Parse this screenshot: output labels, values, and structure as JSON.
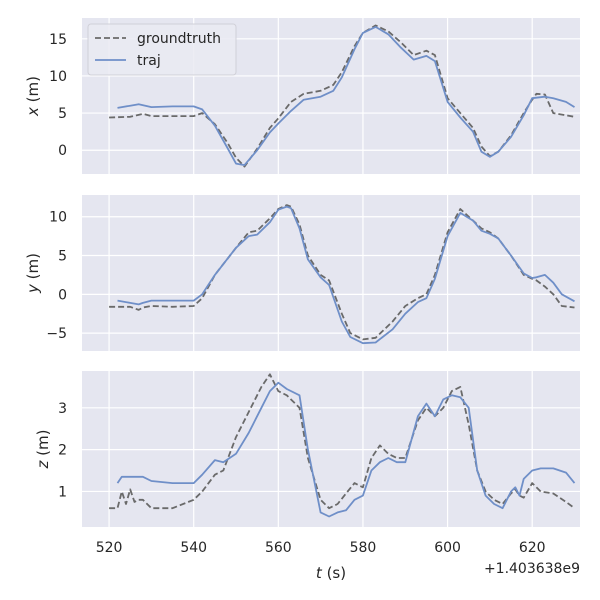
{
  "colors": {
    "background": "#ffffff",
    "panel": "#e5e6f0",
    "grid": "#ffffff",
    "groundtruth": "#6a6a6a",
    "traj": "#6f8fc8",
    "text": "#262626"
  },
  "legend": {
    "placement": "top-left",
    "items": [
      "groundtruth",
      "traj"
    ]
  },
  "chart_data": [
    {
      "type": "line",
      "ylabel": "x (m)",
      "ylabel_var": "x",
      "ylabel_unit": "(m)",
      "xlim": [
        513.6,
        631.3
      ],
      "ylim": [
        -3.2,
        17.8
      ],
      "yticks": [
        0,
        5,
        10,
        15
      ],
      "ytick_labels": [
        "0",
        "5",
        "10",
        "15"
      ],
      "grid": true,
      "series": [
        {
          "name": "groundtruth",
          "style": "dashed",
          "x": [
            520,
            525,
            528,
            530,
            535,
            540,
            542,
            545,
            548,
            550,
            552,
            555,
            558,
            560,
            563,
            566,
            570,
            573,
            575,
            578,
            580,
            583,
            586,
            589,
            592,
            595,
            597,
            600,
            603,
            606,
            608,
            610,
            612,
            615,
            618,
            620,
            621,
            623,
            625,
            628,
            630
          ],
          "y": [
            4.4,
            4.5,
            4.9,
            4.6,
            4.6,
            4.6,
            5.0,
            3.5,
            1.0,
            -1.0,
            -2.2,
            0.2,
            3.0,
            4.3,
            6.5,
            7.6,
            8.0,
            8.8,
            10.5,
            14.0,
            15.8,
            16.8,
            16.0,
            14.5,
            12.8,
            13.4,
            12.8,
            7.0,
            5.0,
            3.0,
            0.5,
            -0.8,
            -0.2,
            2.0,
            5.0,
            6.8,
            7.6,
            7.5,
            5.0,
            4.7,
            4.5
          ]
        },
        {
          "name": "traj",
          "style": "solid",
          "x": [
            522,
            525,
            527,
            530,
            535,
            540,
            542,
            545,
            548,
            550,
            552,
            555,
            558,
            560,
            563,
            566,
            570,
            573,
            575,
            578,
            580,
            583,
            586,
            589,
            592,
            595,
            597,
            600,
            603,
            606,
            608,
            610,
            612,
            615,
            618,
            620,
            623,
            625,
            628,
            630
          ],
          "y": [
            5.7,
            6.0,
            6.2,
            5.8,
            5.9,
            5.9,
            5.5,
            3.3,
            0.3,
            -1.8,
            -2.0,
            0.0,
            2.4,
            3.6,
            5.3,
            6.8,
            7.2,
            8.0,
            9.8,
            13.6,
            15.8,
            16.6,
            15.6,
            13.8,
            12.2,
            12.7,
            12.0,
            6.5,
            4.4,
            2.5,
            -0.2,
            -0.9,
            -0.2,
            1.8,
            4.7,
            7.0,
            7.2,
            7.0,
            6.5,
            5.8
          ]
        }
      ]
    },
    {
      "type": "line",
      "ylabel": "y (m)",
      "ylabel_var": "y",
      "ylabel_unit": "(m)",
      "xlim": [
        513.6,
        631.3
      ],
      "ylim": [
        -7.3,
        12.8
      ],
      "yticks": [
        -5,
        0,
        5,
        10
      ],
      "ytick_labels": [
        "−5",
        "0",
        "5",
        "10"
      ],
      "grid": true,
      "series": [
        {
          "name": "groundtruth",
          "style": "dashed",
          "x": [
            520,
            525,
            527,
            528,
            530,
            535,
            540,
            542,
            545,
            550,
            553,
            555,
            558,
            560,
            562,
            563,
            565,
            567,
            570,
            572,
            575,
            577,
            580,
            583,
            587,
            590,
            593,
            595,
            597,
            600,
            603,
            606,
            608,
            610,
            612,
            615,
            618,
            620,
            621,
            623,
            625,
            627,
            630
          ],
          "y": [
            -1.6,
            -1.6,
            -2.0,
            -1.7,
            -1.5,
            -1.6,
            -1.5,
            -0.5,
            2.5,
            6.0,
            8.0,
            8.2,
            9.8,
            11.0,
            11.5,
            11.3,
            9.0,
            5.0,
            2.5,
            1.8,
            -2.5,
            -5.0,
            -5.8,
            -5.6,
            -3.5,
            -1.5,
            -0.5,
            0.0,
            2.5,
            8.0,
            11.0,
            9.5,
            8.5,
            8.0,
            7.2,
            5.0,
            2.5,
            2.0,
            1.8,
            1.0,
            0.0,
            -1.5,
            -1.7
          ]
        },
        {
          "name": "traj",
          "style": "solid",
          "x": [
            522,
            525,
            527,
            528,
            530,
            535,
            540,
            542,
            545,
            550,
            553,
            555,
            558,
            560,
            562,
            563,
            565,
            567,
            570,
            572,
            575,
            577,
            580,
            583,
            587,
            590,
            593,
            595,
            597,
            600,
            603,
            606,
            608,
            610,
            612,
            615,
            618,
            620,
            621,
            623,
            625,
            627,
            630
          ],
          "y": [
            -0.8,
            -1.1,
            -1.3,
            -1.1,
            -0.8,
            -0.8,
            -0.8,
            0.0,
            2.5,
            6.0,
            7.5,
            7.7,
            9.3,
            10.9,
            11.3,
            11.1,
            8.5,
            4.5,
            2.2,
            1.2,
            -3.5,
            -5.5,
            -6.3,
            -6.2,
            -4.5,
            -2.5,
            -1.0,
            -0.5,
            2.0,
            7.5,
            10.5,
            9.5,
            8.2,
            7.8,
            7.2,
            5.0,
            2.7,
            2.1,
            2.2,
            2.5,
            1.5,
            0.0,
            -0.9
          ]
        }
      ]
    },
    {
      "type": "line",
      "ylabel": "z (m)",
      "ylabel_var": "z",
      "ylabel_unit": "(m)",
      "xlabel": "t (s)",
      "xlabel_var": "t",
      "xlabel_unit": "(s)",
      "xlim": [
        513.6,
        631.3
      ],
      "ylim": [
        0.15,
        3.88
      ],
      "yticks": [
        1,
        2,
        3
      ],
      "ytick_labels": [
        "1",
        "2",
        "3"
      ],
      "xticks": [
        520,
        540,
        560,
        580,
        600,
        620
      ],
      "xtick_labels": [
        "520",
        "540",
        "560",
        "580",
        "600",
        "620"
      ],
      "offset_label": "+1.403638e9",
      "grid": true,
      "series": [
        {
          "name": "groundtruth",
          "style": "dashed",
          "x": [
            520,
            522,
            523,
            524,
            525,
            526,
            527,
            528,
            530,
            535,
            540,
            542,
            545,
            547,
            550,
            553,
            556,
            558,
            560,
            562,
            565,
            567,
            570,
            572,
            574,
            576,
            578,
            580,
            582,
            584,
            586,
            588,
            590,
            593,
            595,
            597,
            599,
            601,
            603,
            605,
            607,
            609,
            611,
            613,
            615,
            616,
            617,
            618,
            620,
            622,
            625,
            628,
            630
          ],
          "y": [
            0.6,
            0.6,
            1.0,
            0.7,
            1.05,
            0.75,
            0.8,
            0.8,
            0.6,
            0.6,
            0.8,
            1.0,
            1.4,
            1.5,
            2.3,
            2.9,
            3.5,
            3.8,
            3.4,
            3.3,
            3.0,
            1.8,
            0.8,
            0.6,
            0.7,
            0.95,
            1.2,
            1.1,
            1.8,
            2.1,
            1.9,
            1.8,
            1.8,
            2.7,
            3.0,
            2.8,
            3.0,
            3.4,
            3.5,
            2.6,
            1.5,
            1.0,
            0.8,
            0.7,
            0.95,
            1.05,
            0.9,
            0.85,
            1.2,
            1.0,
            0.95,
            0.75,
            0.6
          ]
        },
        {
          "name": "traj",
          "style": "solid",
          "x": [
            522,
            523,
            525,
            527,
            528,
            530,
            535,
            540,
            542,
            545,
            547,
            550,
            553,
            556,
            558,
            560,
            562,
            565,
            567,
            570,
            572,
            574,
            576,
            578,
            580,
            582,
            584,
            586,
            588,
            590,
            593,
            595,
            597,
            599,
            601,
            603,
            605,
            607,
            609,
            611,
            613,
            615,
            616,
            617,
            618,
            620,
            622,
            625,
            628,
            630
          ],
          "y": [
            1.2,
            1.35,
            1.35,
            1.35,
            1.35,
            1.25,
            1.2,
            1.2,
            1.4,
            1.75,
            1.7,
            1.9,
            2.4,
            3.0,
            3.4,
            3.6,
            3.45,
            3.3,
            2.0,
            0.5,
            0.4,
            0.5,
            0.55,
            0.8,
            0.9,
            1.5,
            1.7,
            1.8,
            1.7,
            1.7,
            2.8,
            3.1,
            2.8,
            3.2,
            3.3,
            3.25,
            3.0,
            1.5,
            0.9,
            0.7,
            0.6,
            1.0,
            1.1,
            0.9,
            1.3,
            1.5,
            1.55,
            1.55,
            1.45,
            1.2
          ]
        }
      ]
    }
  ]
}
